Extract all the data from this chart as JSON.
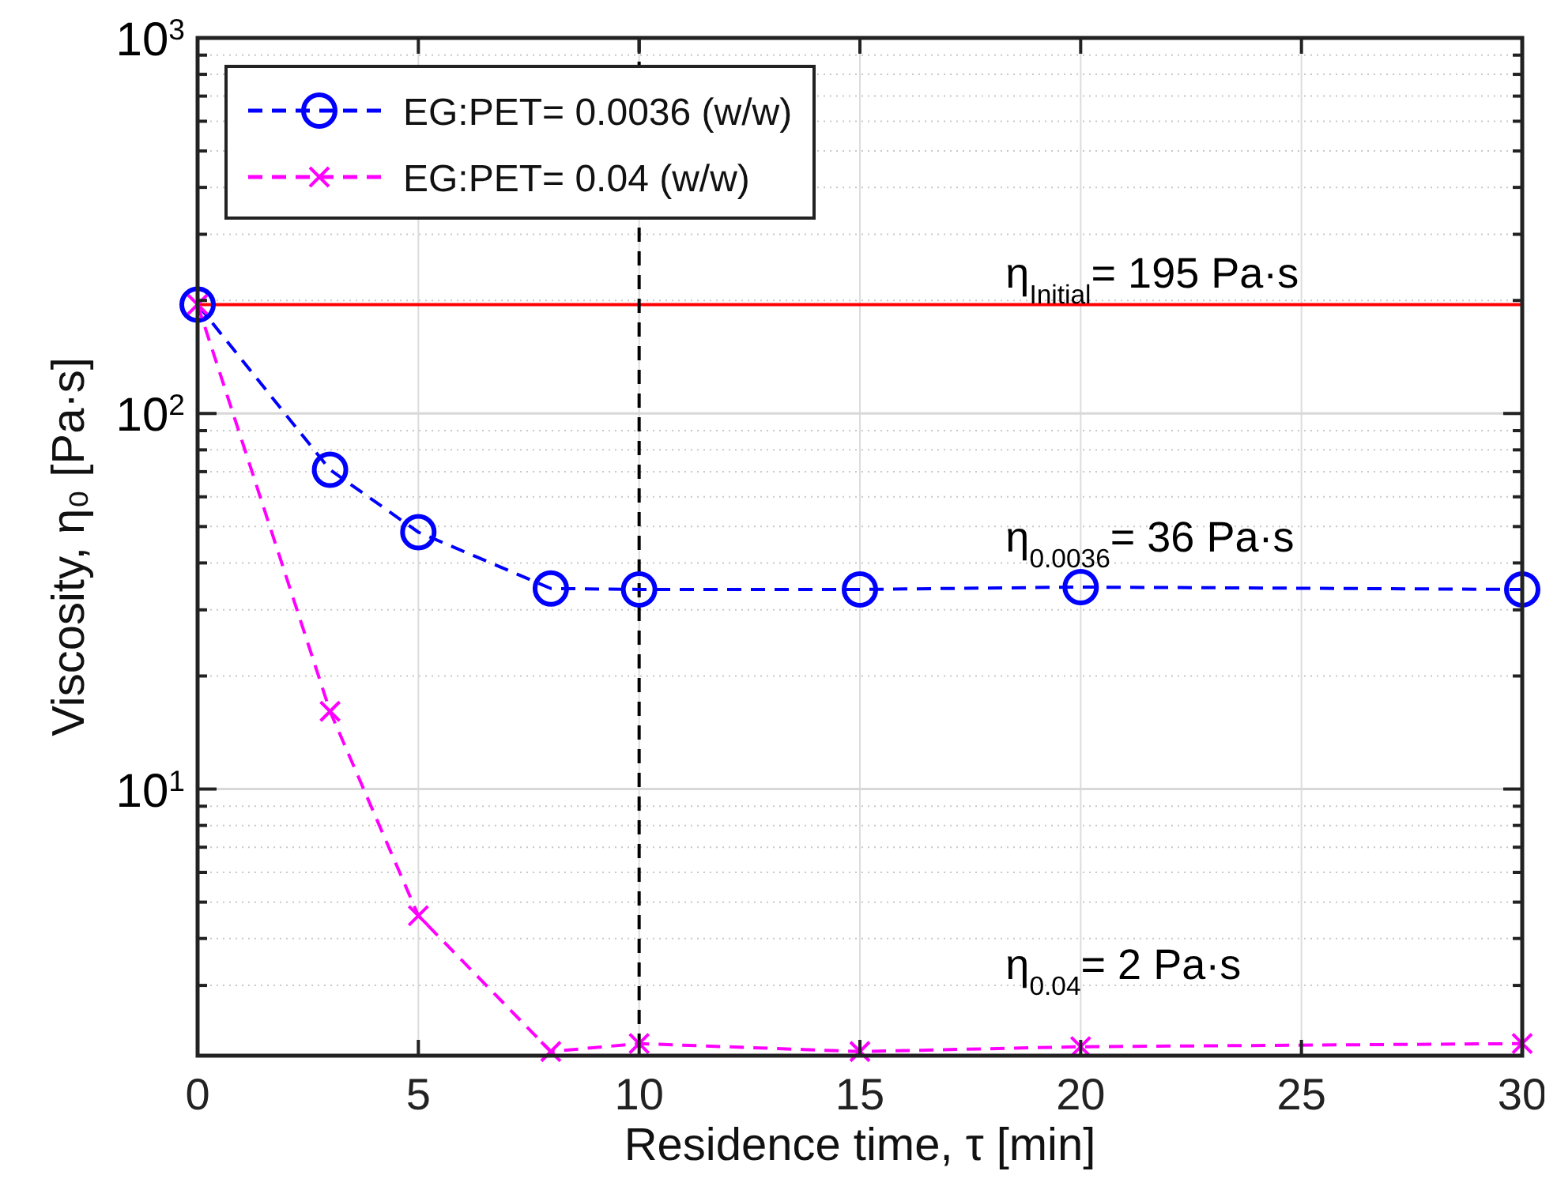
{
  "chart_data": {
    "type": "line",
    "xlabel": "Residence time, τ [min]",
    "ylabel": "Viscosity, η₀ [Pa·s]",
    "xlim": [
      0,
      30
    ],
    "xticks": [
      0,
      5,
      10,
      15,
      20,
      25,
      30
    ],
    "ylim": [
      1.95,
      1000
    ],
    "log": "y",
    "yticks": [
      {
        "value": 10,
        "label": "10$^{1}$"
      },
      {
        "value": 100,
        "label": "10$^{2}$"
      },
      {
        "value": 1000,
        "label": "10$^{3}$"
      },
      {
        "value": 3,
        "label": null
      },
      {
        "value": 4,
        "label": null
      },
      {
        "value": 5,
        "label": null
      },
      {
        "value": 6,
        "label": null
      },
      {
        "value": 7,
        "label": null
      },
      {
        "value": 8,
        "label": null
      },
      {
        "value": 9,
        "label": null
      },
      {
        "value": 20,
        "label": null
      },
      {
        "value": 30,
        "label": null
      },
      {
        "value": 40,
        "label": null
      },
      {
        "value": 50,
        "label": null
      },
      {
        "value": 60,
        "label": null
      },
      {
        "value": 70,
        "label": null
      },
      {
        "value": 80,
        "label": null
      },
      {
        "value": 90,
        "label": null
      },
      {
        "value": 200,
        "label": null
      },
      {
        "value": 300,
        "label": null
      },
      {
        "value": 400,
        "label": null
      },
      {
        "value": 500,
        "label": null
      },
      {
        "value": 600,
        "label": null
      },
      {
        "value": 700,
        "label": null
      },
      {
        "value": 800,
        "label": null
      },
      {
        "value": 900,
        "label": null
      }
    ],
    "x": [
      0,
      3,
      5,
      8,
      10,
      15,
      20,
      30
    ],
    "series": [
      {
        "name": "EG:PET= 0.0036 (w/w)",
        "color": "#0000ff",
        "marker": "circle",
        "line_style": "dashed",
        "values": [
          195,
          70.8,
          48.3,
          34.2,
          34,
          34,
          34.5,
          34
        ]
      },
      {
        "name": "EG:PET= 0.04 (w/w)",
        "color": "#ff00ff",
        "marker": "cross",
        "line_style": "dashed",
        "values": [
          195,
          16.1,
          4.6,
          2.0,
          2.1,
          2.0,
          2.06,
          2.1
        ]
      }
    ],
    "ref_lines": [
      {
        "axis": "y",
        "value": 195,
        "color": "#ff0000",
        "line_style": "solid"
      },
      {
        "axis": "x",
        "value": 10,
        "color": "#000000",
        "line_style": "dashed"
      }
    ],
    "annotations": [
      "η$_{Initial}$= 195 Pa·s",
      "η$_{0.0036}$= 36 Pa·s",
      "η$_{0.04}$= 2 Pa·s"
    ],
    "grid": true,
    "legend": "top left"
  }
}
